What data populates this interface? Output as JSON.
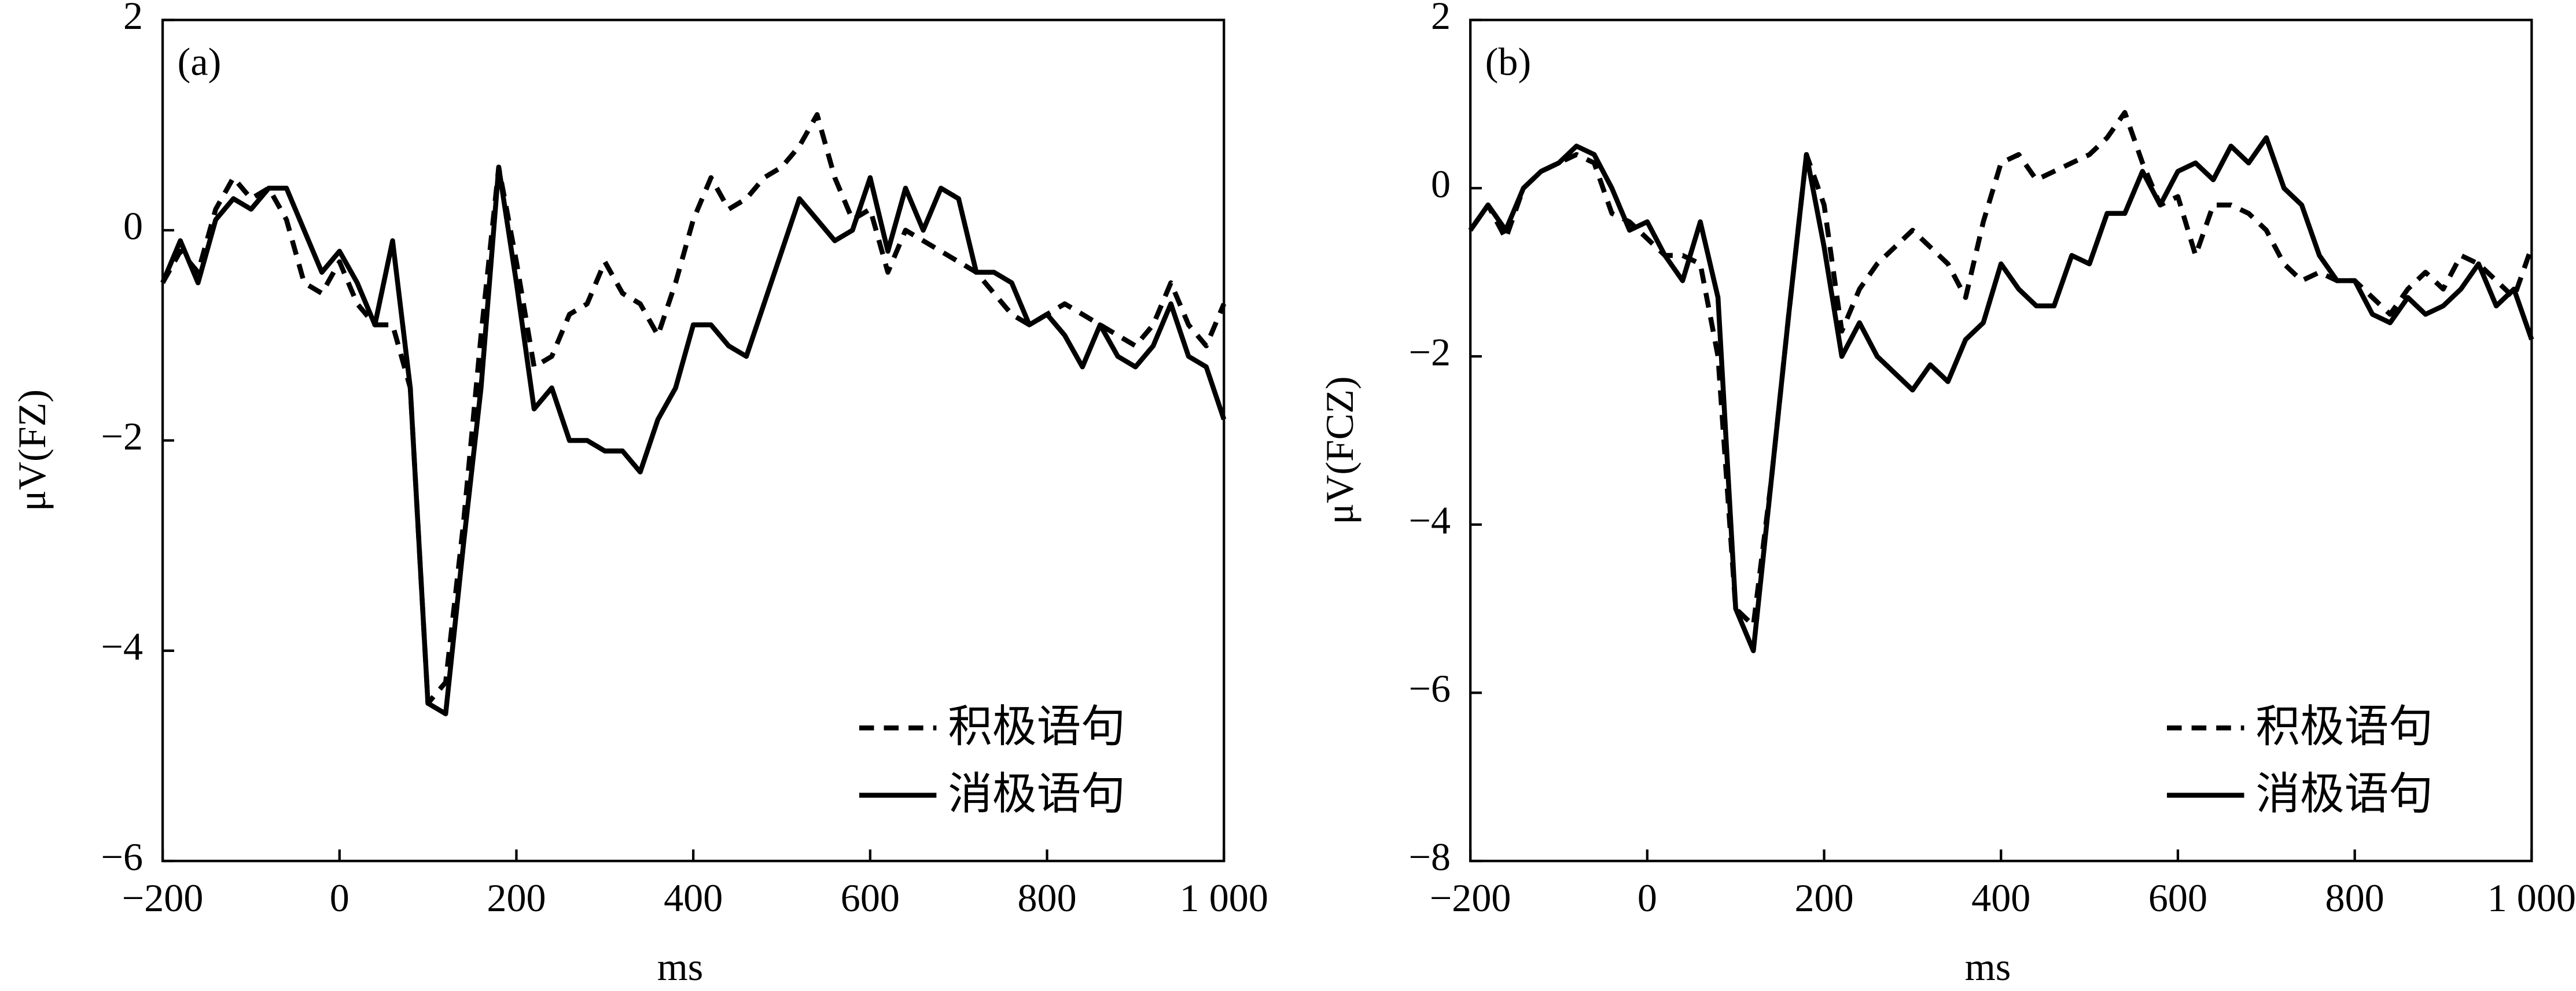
{
  "chart_data": [
    {
      "type": "line",
      "panel_label": "(a)",
      "y_label": "μV(FZ)",
      "x_label": "ms",
      "xlim": [
        -200,
        1000
      ],
      "ylim": [
        -6,
        2
      ],
      "xticks": [
        {
          "value": -200,
          "label": "−200"
        },
        0,
        200,
        400,
        600,
        800,
        {
          "value": 1000,
          "label": "1 000"
        }
      ],
      "yticks": [
        2,
        0,
        {
          "value": -2,
          "label": "−2"
        },
        {
          "value": -4,
          "label": "−4"
        },
        {
          "value": -6,
          "label": "−6"
        }
      ],
      "legend": "lower right",
      "x": [
        -200,
        -180,
        -160,
        -140,
        -120,
        -100,
        -80,
        -60,
        -40,
        -20,
        0,
        20,
        40,
        60,
        80,
        100,
        120,
        140,
        160,
        180,
        200,
        220,
        240,
        260,
        280,
        300,
        320,
        340,
        360,
        380,
        400,
        420,
        440,
        460,
        480,
        500,
        520,
        540,
        560,
        580,
        600,
        620,
        640,
        660,
        680,
        700,
        720,
        740,
        760,
        780,
        800,
        820,
        840,
        860,
        880,
        900,
        920,
        940,
        960,
        980,
        1000
      ],
      "series": [
        {
          "name": "积极语句",
          "color": "#000000",
          "dashed": true,
          "values": [
            -0.5,
            -0.2,
            -0.4,
            0.2,
            0.5,
            0.3,
            0.4,
            0.1,
            -0.5,
            -0.6,
            -0.3,
            -0.7,
            -0.9,
            -0.9,
            -1.5,
            -4.5,
            -4.3,
            -2.8,
            -1.0,
            0.6,
            -0.3,
            -1.3,
            -1.2,
            -0.8,
            -0.7,
            -0.3,
            -0.6,
            -0.7,
            -1.0,
            -0.5,
            0.1,
            0.5,
            0.2,
            0.3,
            0.5,
            0.6,
            0.8,
            1.1,
            0.5,
            0.1,
            0.2,
            -0.4,
            0.0,
            -0.1,
            -0.2,
            -0.3,
            -0.4,
            -0.6,
            -0.8,
            -0.9,
            -0.8,
            -0.7,
            -0.8,
            -0.9,
            -1.0,
            -1.1,
            -0.9,
            -0.5,
            -0.9,
            -1.1,
            -0.7
          ]
        },
        {
          "name": "消极语句",
          "color": "#000000",
          "dashed": false,
          "values": [
            -0.5,
            -0.1,
            -0.5,
            0.1,
            0.3,
            0.2,
            0.4,
            0.4,
            0.0,
            -0.4,
            -0.2,
            -0.5,
            -0.9,
            -0.1,
            -1.5,
            -4.5,
            -4.6,
            -3.0,
            -1.5,
            0.6,
            -0.5,
            -1.7,
            -1.5,
            -2.0,
            -2.0,
            -2.1,
            -2.1,
            -2.3,
            -1.8,
            -1.5,
            -0.9,
            -0.9,
            -1.1,
            -1.2,
            -0.7,
            -0.2,
            0.3,
            0.1,
            -0.1,
            0.0,
            0.5,
            -0.2,
            0.4,
            0.0,
            0.4,
            0.3,
            -0.4,
            -0.4,
            -0.5,
            -0.9,
            -0.8,
            -1.0,
            -1.3,
            -0.9,
            -1.2,
            -1.3,
            -1.1,
            -0.7,
            -1.2,
            -1.3,
            -1.8
          ]
        }
      ]
    },
    {
      "type": "line",
      "panel_label": "(b)",
      "y_label": "μV(FCZ)",
      "x_label": "ms",
      "xlim": [
        -200,
        1000
      ],
      "ylim": [
        -8,
        2
      ],
      "xticks": [
        {
          "value": -200,
          "label": "−200"
        },
        0,
        200,
        400,
        600,
        800,
        {
          "value": 1000,
          "label": "1 000"
        }
      ],
      "yticks": [
        2,
        0,
        {
          "value": -2,
          "label": "−2"
        },
        {
          "value": -4,
          "label": "−4"
        },
        {
          "value": -6,
          "label": "−6"
        },
        {
          "value": -8,
          "label": "−8"
        }
      ],
      "legend": "lower right",
      "x": [
        -200,
        -180,
        -160,
        -140,
        -120,
        -100,
        -80,
        -60,
        -40,
        -20,
        0,
        20,
        40,
        60,
        80,
        100,
        120,
        140,
        160,
        180,
        200,
        220,
        240,
        260,
        280,
        300,
        320,
        340,
        360,
        380,
        400,
        420,
        440,
        460,
        480,
        500,
        520,
        540,
        560,
        580,
        600,
        620,
        640,
        660,
        680,
        700,
        720,
        740,
        760,
        780,
        800,
        820,
        840,
        860,
        880,
        900,
        920,
        940,
        960,
        980,
        1000
      ],
      "series": [
        {
          "name": "积极语句",
          "color": "#000000",
          "dashed": true,
          "values": [
            -0.5,
            -0.2,
            -0.6,
            0.0,
            0.2,
            0.3,
            0.4,
            0.3,
            -0.3,
            -0.4,
            -0.6,
            -0.8,
            -0.8,
            -0.9,
            -2.0,
            -5.0,
            -5.2,
            -3.5,
            -1.5,
            0.4,
            -0.2,
            -1.7,
            -1.2,
            -0.9,
            -0.7,
            -0.5,
            -0.7,
            -0.9,
            -1.3,
            -0.4,
            0.3,
            0.4,
            0.1,
            0.2,
            0.3,
            0.4,
            0.6,
            0.9,
            0.3,
            -0.2,
            -0.1,
            -0.8,
            -0.2,
            -0.2,
            -0.3,
            -0.5,
            -0.9,
            -1.1,
            -1.0,
            -1.1,
            -1.1,
            -1.3,
            -1.5,
            -1.2,
            -1.0,
            -1.2,
            -0.8,
            -0.9,
            -1.1,
            -1.3,
            -0.7
          ]
        },
        {
          "name": "消极语句",
          "color": "#000000",
          "dashed": false,
          "values": [
            -0.5,
            -0.2,
            -0.5,
            0.0,
            0.2,
            0.3,
            0.5,
            0.4,
            0.0,
            -0.5,
            -0.4,
            -0.8,
            -1.1,
            -0.4,
            -1.3,
            -5.0,
            -5.5,
            -3.5,
            -1.5,
            0.4,
            -0.7,
            -2.0,
            -1.6,
            -2.0,
            -2.2,
            -2.4,
            -2.1,
            -2.3,
            -1.8,
            -1.6,
            -0.9,
            -1.2,
            -1.4,
            -1.4,
            -0.8,
            -0.9,
            -0.3,
            -0.3,
            0.2,
            -0.2,
            0.2,
            0.3,
            0.1,
            0.5,
            0.3,
            0.6,
            0.0,
            -0.2,
            -0.8,
            -1.1,
            -1.1,
            -1.5,
            -1.6,
            -1.3,
            -1.5,
            -1.4,
            -1.2,
            -0.9,
            -1.4,
            -1.2,
            -1.8
          ]
        }
      ]
    }
  ]
}
